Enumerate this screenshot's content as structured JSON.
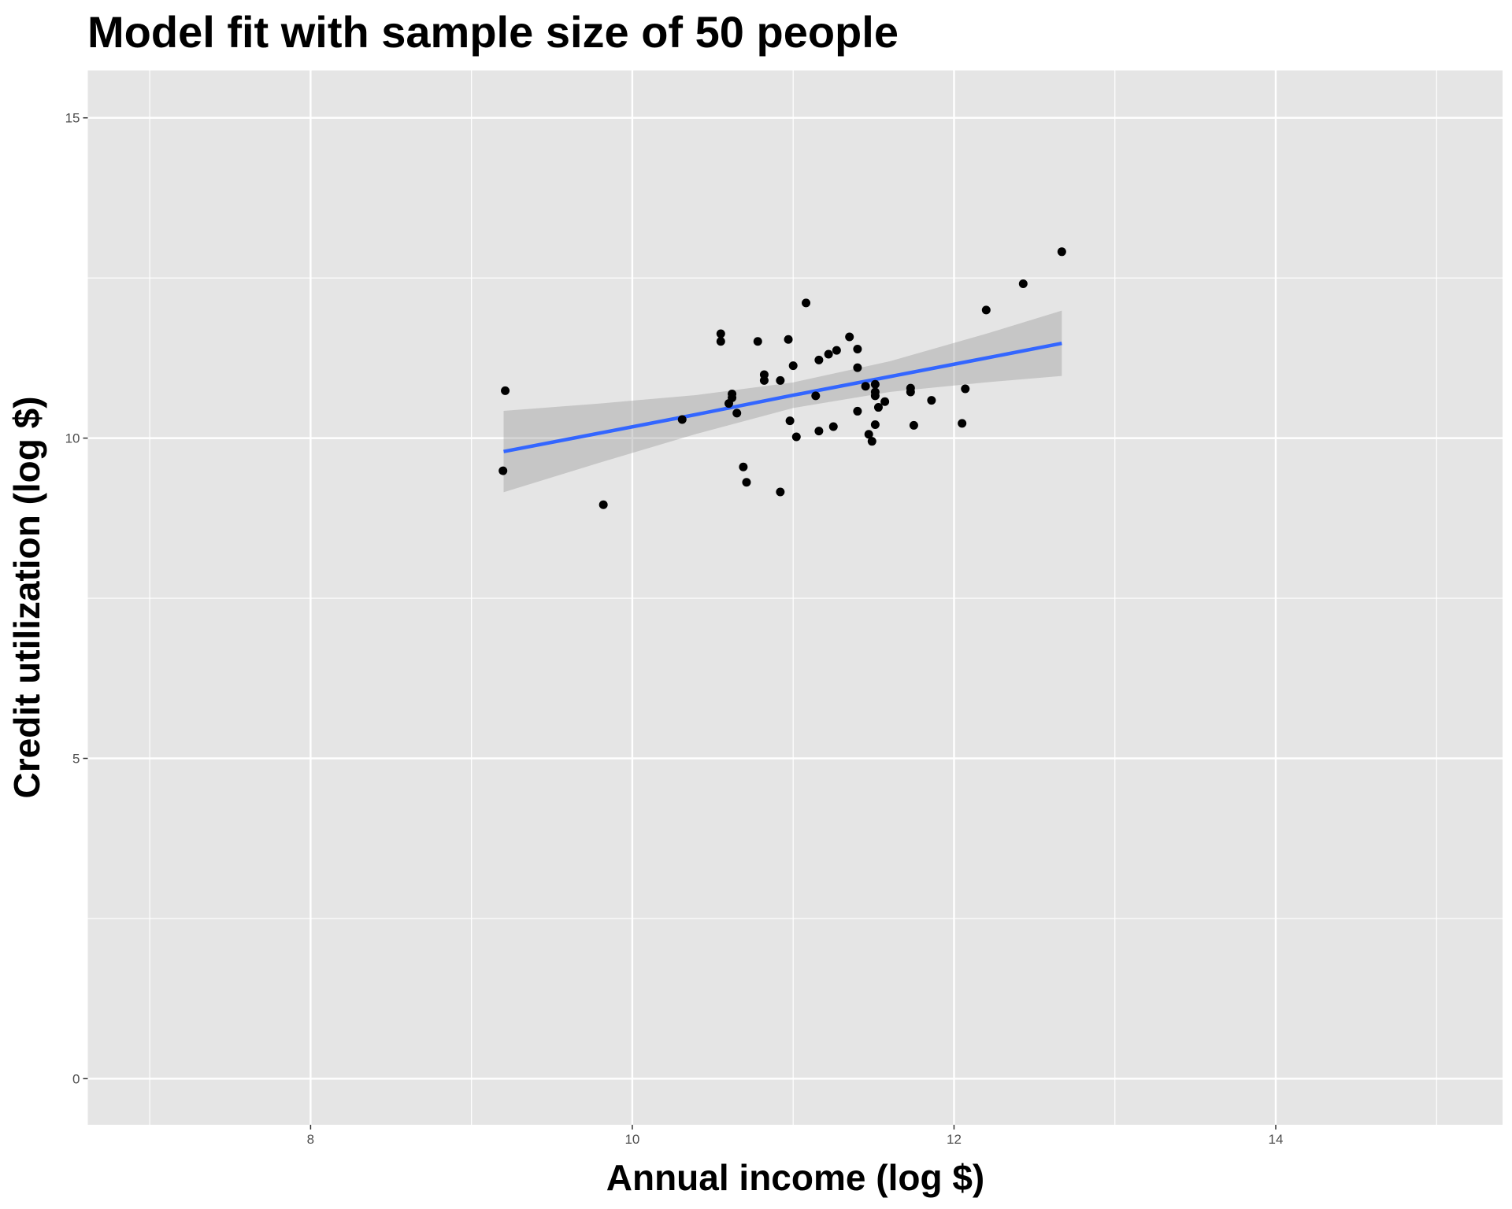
{
  "chart_data": {
    "type": "scatter",
    "title": "Model fit with sample size of 50 people",
    "x_label": "Annual income (log $)",
    "y_label": "Credit utilization (log $)",
    "x": [
      9.196,
      9.21,
      9.82,
      10.31,
      10.55,
      10.55,
      10.6,
      10.62,
      10.62,
      10.65,
      10.69,
      10.71,
      10.78,
      10.82,
      10.82,
      10.92,
      10.92,
      10.97,
      10.98,
      11.0,
      11.02,
      11.08,
      11.14,
      11.16,
      11.16,
      11.22,
      11.25,
      11.27,
      11.35,
      11.4,
      11.4,
      11.4,
      11.45,
      11.47,
      11.49,
      11.51,
      11.51,
      11.51,
      11.51,
      11.53,
      11.57,
      11.73,
      11.73,
      11.75,
      11.86,
      12.05,
      12.07,
      12.2,
      12.43,
      12.67
    ],
    "values": [
      9.49,
      10.74,
      8.96,
      10.29,
      11.63,
      11.51,
      10.54,
      10.69,
      10.63,
      10.39,
      9.55,
      9.31,
      11.51,
      10.99,
      10.9,
      10.9,
      9.16,
      11.54,
      10.27,
      11.13,
      10.02,
      12.11,
      10.66,
      11.22,
      10.11,
      11.31,
      10.18,
      11.37,
      11.58,
      11.39,
      11.1,
      10.42,
      10.81,
      10.06,
      9.95,
      10.84,
      10.72,
      10.66,
      10.21,
      10.48,
      10.57,
      10.72,
      10.78,
      10.2,
      10.59,
      10.23,
      10.77,
      12.0,
      12.41,
      12.91
    ],
    "color": "#000000",
    "fit": {
      "color": "#3366ff",
      "band_color": "#999999",
      "x": [
        9.2,
        9.8,
        10.4,
        11.0,
        11.6,
        12.2,
        12.67
      ],
      "y": [
        9.79,
        10.08,
        10.37,
        10.67,
        10.96,
        11.25,
        11.48
      ],
      "ymin": [
        9.155,
        9.619,
        10.067,
        10.47,
        10.721,
        10.871,
        10.97
      ],
      "ymax": [
        10.425,
        10.541,
        10.673,
        10.87,
        11.199,
        11.629,
        11.99
      ]
    },
    "xlim": [
      6.615,
      15.41
    ],
    "ylim": [
      -0.72,
      15.74
    ],
    "xticks": [
      8,
      10,
      12,
      14
    ],
    "yticks": [
      0,
      5,
      10,
      15
    ],
    "grid": true
  }
}
